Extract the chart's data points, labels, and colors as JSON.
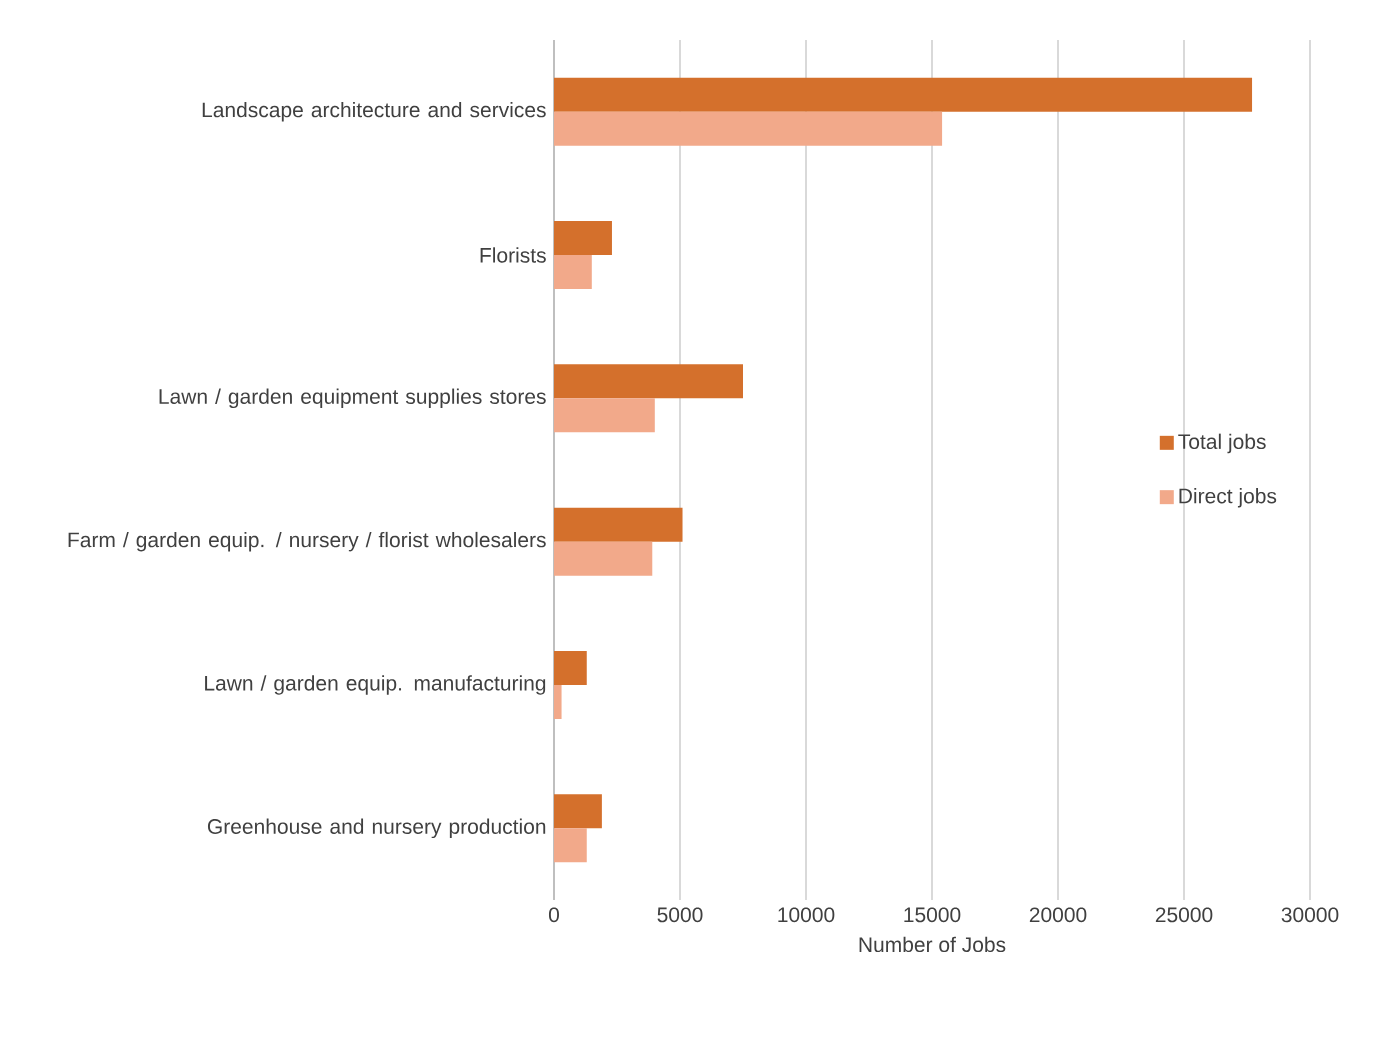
{
  "chart_data": {
    "type": "bar",
    "orientation": "horizontal",
    "xlabel": "Number of Jobs",
    "categories": [
      "Landscape architecture and services",
      "Florists",
      "Lawn / garden equipment supplies stores",
      "Farm / garden equip. / nursery / florist wholesalers",
      "Lawn / garden equip. manufacturing",
      "Greenhouse and nursery production"
    ],
    "series": [
      {
        "name": "Total jobs",
        "color": "#d4702c",
        "values": [
          27700,
          2300,
          7500,
          5100,
          1300,
          1900
        ]
      },
      {
        "name": "Direct jobs",
        "color": "#f2a98a",
        "values": [
          15400,
          1500,
          4000,
          3900,
          300,
          1300
        ]
      }
    ],
    "xlim": [
      0,
      30000
    ],
    "xticks": [
      0,
      5000,
      10000,
      15000,
      20000,
      25000,
      30000
    ],
    "grid": "x",
    "legend": "right"
  }
}
